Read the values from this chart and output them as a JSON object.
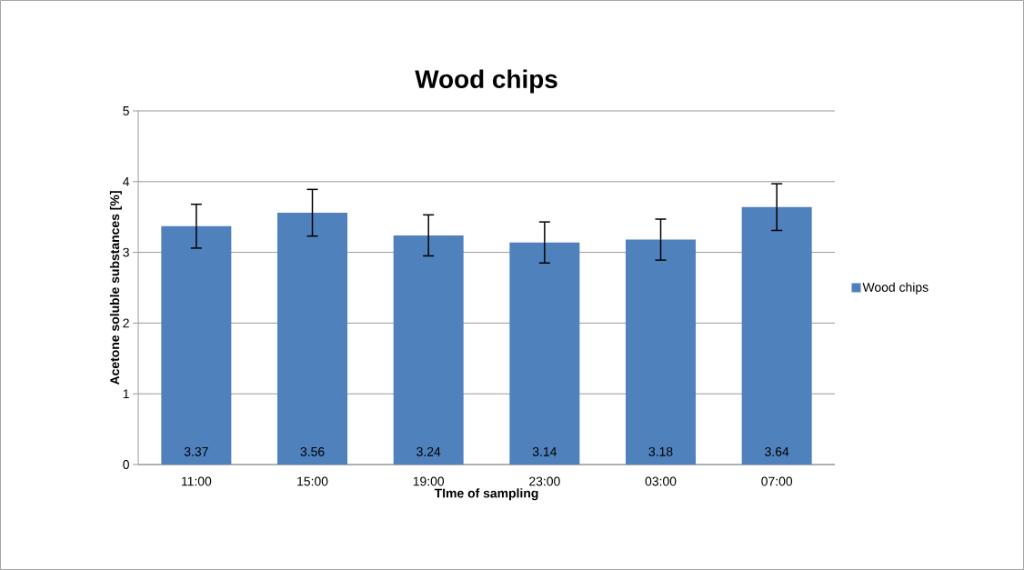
{
  "chart_data": {
    "type": "bar",
    "title": "Wood chips",
    "xlabel": "TIme of sampling",
    "ylabel": "Acetone soluble substances [%]",
    "categories": [
      "11:00",
      "15:00",
      "19:00",
      "23:00",
      "03:00",
      "07:00"
    ],
    "series": [
      {
        "name": "Wood chips",
        "color": "#4f81bd",
        "values": [
          3.37,
          3.56,
          3.24,
          3.14,
          3.18,
          3.64
        ],
        "errors": [
          0.31,
          0.33,
          0.29,
          0.29,
          0.29,
          0.33
        ]
      }
    ],
    "ylim": [
      0,
      5
    ],
    "yticks": [
      0,
      1,
      2,
      3,
      4,
      5
    ],
    "grid": "y",
    "legend": "right",
    "data_labels": true
  }
}
